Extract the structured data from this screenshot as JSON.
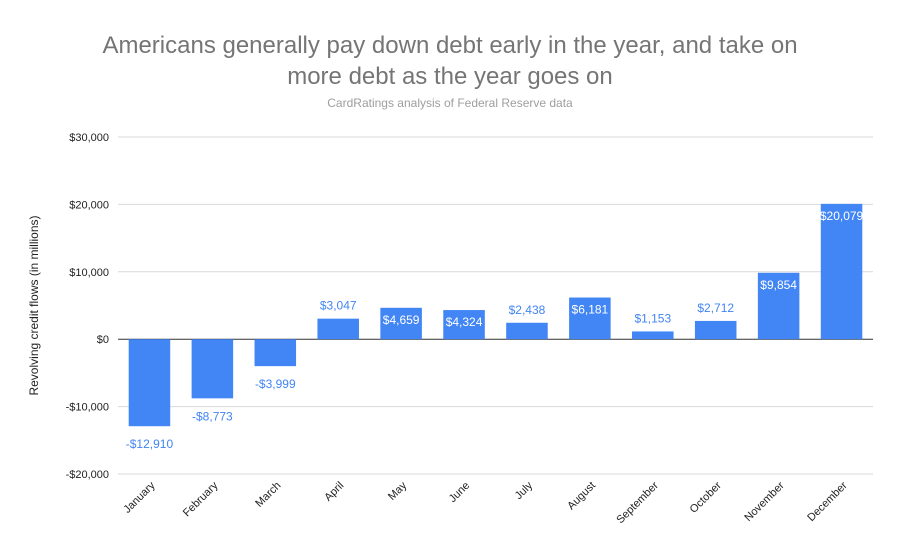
{
  "chart_data": {
    "type": "bar",
    "title_line1": "Americans generally pay down debt early in the year, and take on",
    "title_line2": "more debt as the year goes on",
    "subtitle": "CardRatings analysis of Federal Reserve data",
    "ylabel": "Revolving credit flows (in millions)",
    "xlabel": "",
    "ylim": [
      -20000,
      30000
    ],
    "yticks": [
      30000,
      20000,
      10000,
      0,
      -10000,
      -20000
    ],
    "ytick_labels": [
      "$30,000",
      "$20,000",
      "$10,000",
      "$0",
      "-$10,000",
      "-$20,000"
    ],
    "categories": [
      "January",
      "February",
      "March",
      "April",
      "May",
      "June",
      "July",
      "August",
      "September",
      "October",
      "November",
      "December"
    ],
    "values": [
      -12910,
      -8773,
      -3999,
      3047,
      4659,
      4324,
      2438,
      6181,
      1153,
      2712,
      9854,
      20079
    ],
    "data_labels": [
      "-$12,910",
      "-$8,773",
      "-$3,999",
      "$3,047",
      "$4,659",
      "$4,324",
      "$2,438",
      "$6,181",
      "$1,153",
      "$2,712",
      "$9,854",
      "$20,079"
    ],
    "grid": true,
    "legend": "none",
    "bar_color": "#4285f4",
    "label_color": "#4285f4"
  }
}
